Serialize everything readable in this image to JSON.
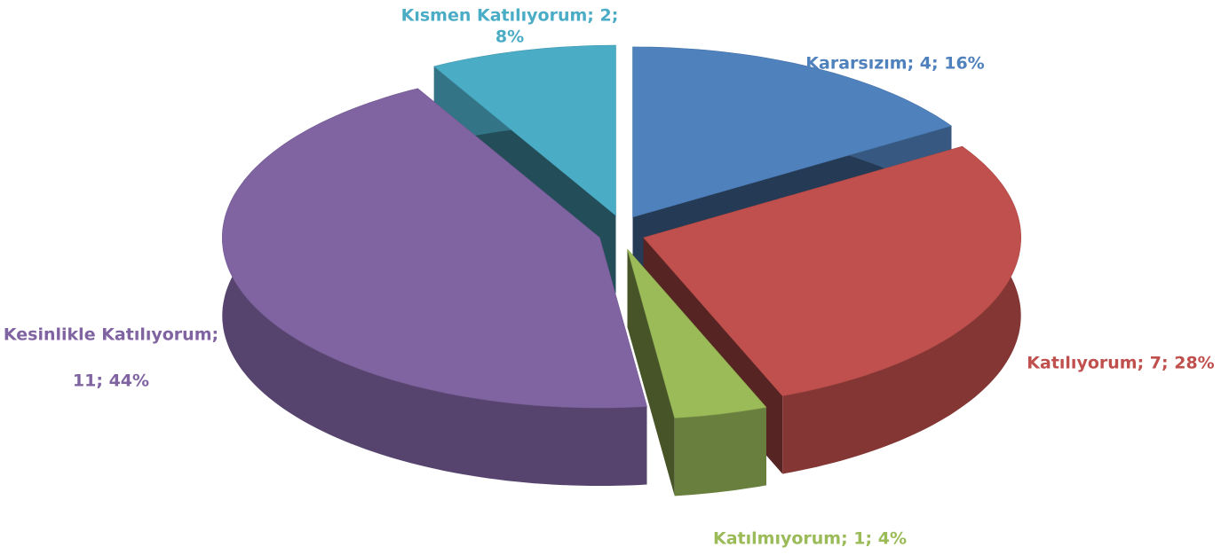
{
  "chart_data": {
    "type": "pie3d",
    "values": [
      4,
      7,
      1,
      11,
      2
    ],
    "value_labels": [
      [
        "Kararsızım; 4; 16%"
      ],
      [
        "Katılıyorum; 7; 28%"
      ],
      [
        "Katılmıyorum; 1; 4%"
      ],
      [
        "Kesinlikle Katılıyorum;",
        "11; 44%"
      ],
      [
        "Kısmen Katılıyorum; 2;",
        "8%"
      ]
    ],
    "colors": [
      "#4f81bd",
      "#c0504d",
      "#9bbb59",
      "#8064a2",
      "#4bacc6"
    ],
    "label_colors": [
      "#4f81bd",
      "#c0504d",
      "#9bbb59",
      "#8064a2",
      "#4bacc6"
    ]
  }
}
